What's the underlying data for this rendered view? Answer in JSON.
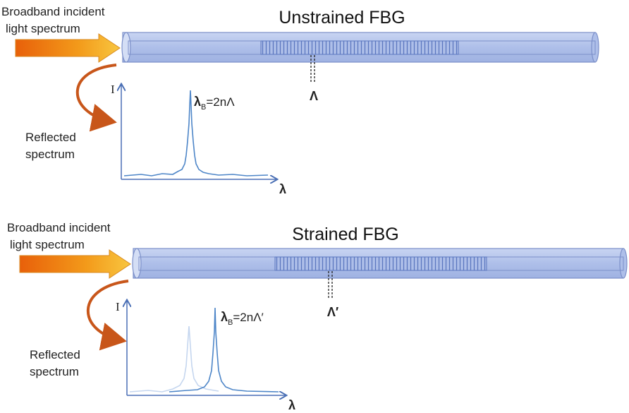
{
  "panels": [
    {
      "title": "Unstrained FBG",
      "input_label": [
        "Broadband incident",
        "light spectrum"
      ],
      "reflected_label": [
        "Reflected",
        "spectrum"
      ],
      "y_axis": "I",
      "x_axis": "λ",
      "peak_formula": {
        "symbol": "λ",
        "subscript": "B",
        "rest": "=2nΛ"
      },
      "period": "Λ"
    },
    {
      "title": "Strained FBG",
      "input_label": [
        "Broadband incident",
        "light spectrum"
      ],
      "reflected_label": [
        "Reflected",
        "spectrum"
      ],
      "y_axis": "I",
      "x_axis": "λ",
      "peak_formula": {
        "symbol": "λ",
        "subscript": "B",
        "rest": "=2nΛ′"
      },
      "period": "Λ′"
    }
  ]
}
